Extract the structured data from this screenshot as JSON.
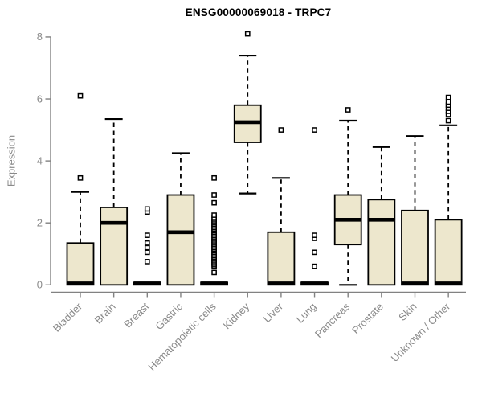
{
  "chart_data": {
    "type": "boxplot",
    "title": "ENSG00000069018 - TRPC7",
    "ylabel": "Expression",
    "xlabel": "",
    "ylim": [
      0,
      8.5
    ],
    "yticks": [
      0,
      2,
      4,
      6,
      8
    ],
    "grid": false,
    "legend": null,
    "colors": {
      "box_fill": "#EDE7CD",
      "box_stroke": "#000000",
      "median": "#000000",
      "axis": "#828282",
      "tick_text": "#8a8a8a",
      "outlier_stroke": "#000000",
      "title": "#000000"
    },
    "categories": [
      "Bladder",
      "Brain",
      "Breast",
      "Gastric",
      "Hematopoietic cells",
      "Kidney",
      "Liver",
      "Lung",
      "Pancreas",
      "Prostate",
      "Skin",
      "Unknown / Other"
    ],
    "boxes": [
      {
        "category": "Bladder",
        "low": 0,
        "q1": 0,
        "median": 0.05,
        "q3": 1.35,
        "high": 3.0,
        "outliers": [
          3.45,
          6.1
        ]
      },
      {
        "category": "Brain",
        "low": 0,
        "q1": 0,
        "median": 2.0,
        "q3": 2.5,
        "high": 5.35,
        "outliers": []
      },
      {
        "category": "Breast",
        "low": 0,
        "q1": 0,
        "median": 0.05,
        "q3": 0.08,
        "high": 0.08,
        "outliers": [
          0.75,
          1.05,
          1.2,
          1.35,
          1.6,
          2.35,
          2.45
        ]
      },
      {
        "category": "Gastric",
        "low": 0,
        "q1": 0,
        "median": 1.7,
        "q3": 2.9,
        "high": 4.25,
        "outliers": []
      },
      {
        "category": "Hematopoietic cells",
        "low": 0,
        "q1": 0,
        "median": 0.05,
        "q3": 0.08,
        "high": 0.08,
        "outliers": [
          0.4,
          0.6,
          0.65,
          0.7,
          0.75,
          0.8,
          0.85,
          0.9,
          0.95,
          1.0,
          1.05,
          1.1,
          1.15,
          1.2,
          1.25,
          1.3,
          1.35,
          1.4,
          1.45,
          1.5,
          1.55,
          1.6,
          1.65,
          1.7,
          1.75,
          1.8,
          1.85,
          1.9,
          1.95,
          2.0,
          2.05,
          2.1,
          2.15,
          2.25,
          2.65,
          2.9,
          3.45
        ]
      },
      {
        "category": "Kidney",
        "low": 2.95,
        "q1": 4.6,
        "median": 5.25,
        "q3": 5.8,
        "high": 7.4,
        "outliers": [
          8.1
        ]
      },
      {
        "category": "Liver",
        "low": 0,
        "q1": 0,
        "median": 0.05,
        "q3": 1.7,
        "high": 3.45,
        "outliers": [
          5.0
        ]
      },
      {
        "category": "Lung",
        "low": 0,
        "q1": 0,
        "median": 0.05,
        "q3": 0.08,
        "high": 0.08,
        "outliers": [
          0.6,
          1.05,
          1.5,
          1.6,
          5.0
        ]
      },
      {
        "category": "Pancreas",
        "low": 0,
        "q1": 1.3,
        "median": 2.1,
        "q3": 2.9,
        "high": 5.3,
        "outliers": [
          5.65
        ]
      },
      {
        "category": "Prostate",
        "low": 0,
        "q1": 0,
        "median": 2.1,
        "q3": 2.75,
        "high": 4.45,
        "outliers": []
      },
      {
        "category": "Skin",
        "low": 0,
        "q1": 0,
        "median": 0.05,
        "q3": 2.4,
        "high": 4.8,
        "outliers": []
      },
      {
        "category": "Unknown / Other",
        "low": 0,
        "q1": 0,
        "median": 0.05,
        "q3": 2.1,
        "high": 5.15,
        "outliers": [
          5.3,
          5.5,
          5.6,
          5.7,
          5.8,
          5.9,
          6.05
        ]
      }
    ]
  }
}
